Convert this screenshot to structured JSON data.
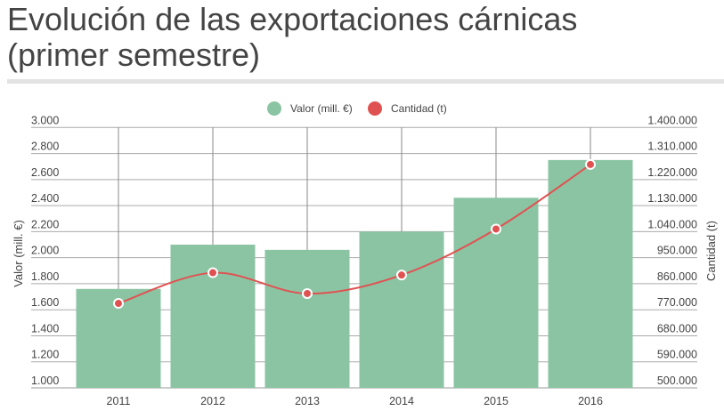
{
  "title_line1": "Evolución de las exportaciones cárnicas",
  "title_line2": "(primer semestre)",
  "chart_data": {
    "type": "bar+line",
    "categories": [
      "2011",
      "2012",
      "2013",
      "2014",
      "2015",
      "2016"
    ],
    "series": [
      {
        "name": "Valor (mill. €)",
        "type": "bar",
        "axis": "left",
        "color": "#8bc4a3",
        "values": [
          1760,
          2100,
          2060,
          2200,
          2460,
          2750
        ]
      },
      {
        "name": "Cantidad (t)",
        "type": "line",
        "axis": "right",
        "color": "#e05252",
        "values": [
          792000,
          898000,
          826000,
          890000,
          1049000,
          1272000
        ]
      }
    ],
    "left_axis": {
      "label": "Valor (mill. €)",
      "range": [
        1000,
        3000
      ],
      "ticks": [
        "1.000",
        "1.200",
        "1.400",
        "1.600",
        "1.800",
        "2.000",
        "2.200",
        "2.400",
        "2.600",
        "2.800",
        "3.000"
      ]
    },
    "right_axis": {
      "label": "Cantidad (t)",
      "range": [
        500000,
        1400000
      ],
      "ticks": [
        "500.000",
        "590.000",
        "680.000",
        "770.000",
        "860.000",
        "950.000",
        "1.040.000",
        "1.130.000",
        "1.220.000",
        "1.310.000",
        "1.400.000"
      ]
    },
    "legend_position": "top-center",
    "grid": true
  }
}
